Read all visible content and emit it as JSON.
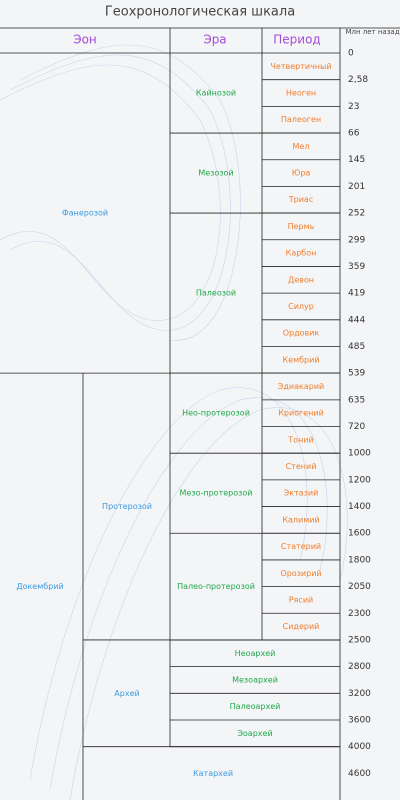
{
  "title": "Геохронологическая шкала",
  "header": {
    "eon": "Эон",
    "era": "Эра",
    "period": "Период",
    "age": "Млн лет назад"
  },
  "ages": [
    "0",
    "2,58",
    "23",
    "66",
    "145",
    "201",
    "252",
    "299",
    "359",
    "419",
    "444",
    "485",
    "539",
    "635",
    "720",
    "1000",
    "1200",
    "1400",
    "1600",
    "1800",
    "2050",
    "2300",
    "2500",
    "2800",
    "3200",
    "3600",
    "4000",
    "4600"
  ],
  "phanerozoic": {
    "name": "Фанерозой",
    "eras": [
      {
        "name": "Кайнозой",
        "periods": [
          "Четвертичный",
          "Неоген",
          "Палеоген"
        ]
      },
      {
        "name": "Мезозой",
        "periods": [
          "Мел",
          "Юра",
          "Триас"
        ]
      },
      {
        "name": "Палеозой",
        "periods": [
          "Пермь",
          "Карбон",
          "Девон",
          "Силур",
          "Ордовик",
          "Кембрий"
        ]
      }
    ]
  },
  "precambrian": {
    "name": "Докембрий",
    "eons": [
      {
        "name": "Протерозой",
        "eras": [
          {
            "name": "Нео-протерозой",
            "periods": [
              "Эдиакарий",
              "Криогений",
              "Тоний"
            ]
          },
          {
            "name": "Мезо-протерозой",
            "periods": [
              "Стений",
              "Эктазий",
              "Калимий"
            ]
          },
          {
            "name": "Палео-протерозой",
            "periods": [
              "Статерий",
              "Орозирий",
              "Рясий",
              "Сидерий"
            ]
          }
        ]
      },
      {
        "name": "Архей",
        "eras": [
          "Неоархей",
          "Мезоархей",
          "Палеоархей",
          "Эоархей"
        ]
      }
    ],
    "katarchean": "Катархей"
  }
}
